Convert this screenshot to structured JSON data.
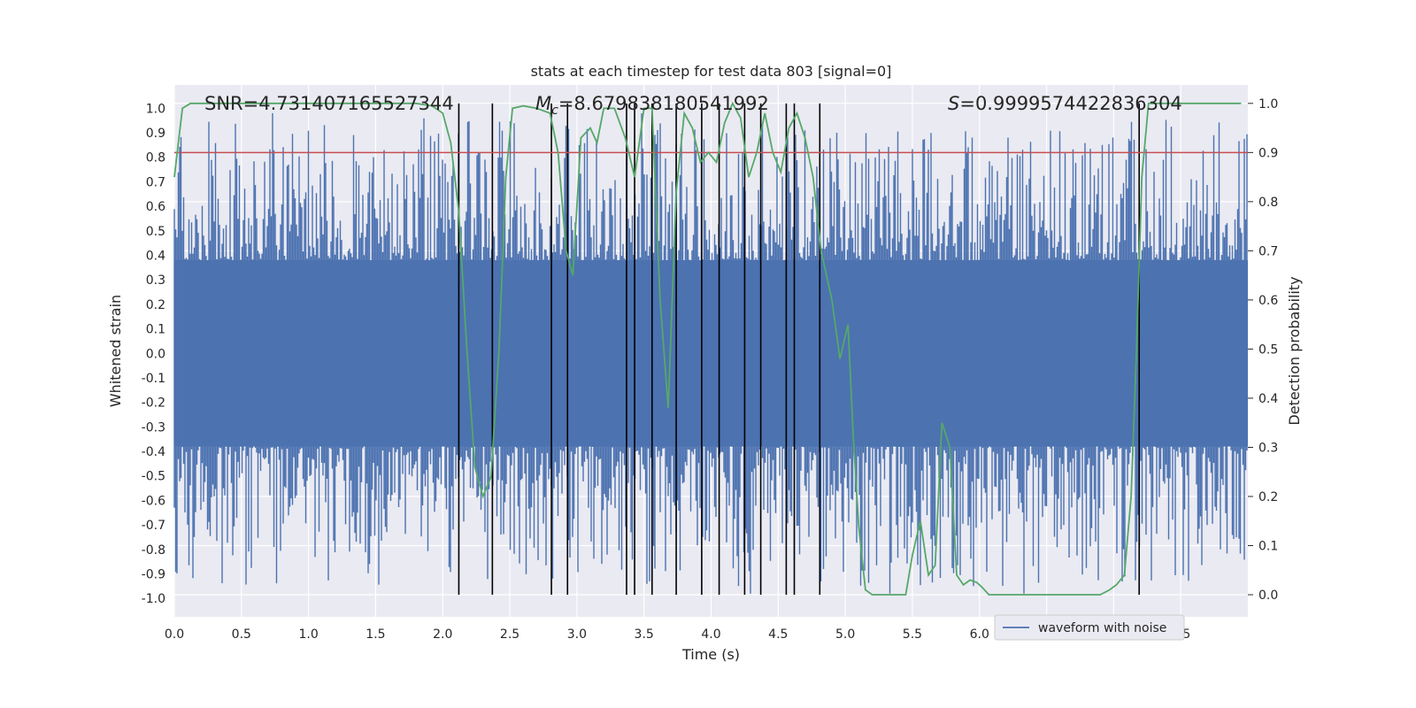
{
  "chart_data": {
    "type": "line",
    "title": "stats at each timestep for test data 803 [signal=0]",
    "xlabel": "Time (s)",
    "ylabel": "Whitened strain",
    "ylabel_right": "Detection probability",
    "xlim": [
      0.0,
      8.0
    ],
    "ylim": [
      -1.075,
      1.095
    ],
    "ylim_right": [
      -0.045,
      1.0375
    ],
    "x_ticks": [
      0.0,
      0.5,
      1.0,
      1.5,
      2.0,
      2.5,
      3.0,
      3.5,
      4.0,
      4.5,
      5.0,
      5.5,
      6.0,
      6.5,
      7.0,
      7.5
    ],
    "x_tick_labels": [
      "0.0",
      "0.5",
      "1.0",
      "1.5",
      "2.0",
      "2.5",
      "3.0",
      "3.5",
      "4.0",
      "4.5",
      "5.0",
      "5.5",
      "6.0",
      "6.5",
      "7.0",
      "7.5"
    ],
    "y_ticks": [
      1.0,
      0.9,
      0.8,
      0.7,
      0.6,
      0.5,
      0.4,
      0.3,
      0.2,
      0.1,
      0.0,
      -0.1,
      -0.2,
      -0.3,
      -0.4,
      -0.5,
      -0.6,
      -0.7,
      -0.8,
      -0.9,
      -1.0
    ],
    "y_tick_labels": [
      "1.0",
      "0.9",
      "0.8",
      "0.7",
      "0.6",
      "0.5",
      "0.4",
      "0.3",
      "0.2",
      "0.1",
      "0.0",
      "-0.1",
      "-0.2",
      "-0.3",
      "-0.4",
      "-0.5",
      "-0.6",
      "-0.7",
      "-0.8",
      "-0.9",
      "-1.0"
    ],
    "y_ticks_right": [
      1.0,
      0.9,
      0.8,
      0.7,
      0.6,
      0.5,
      0.4,
      0.3,
      0.2,
      0.1,
      0.0
    ],
    "y_tick_labels_right": [
      "1.0",
      "0.9",
      "0.8",
      "0.7",
      "0.6",
      "0.5",
      "0.4",
      "0.3",
      "0.2",
      "0.1",
      "0.0"
    ],
    "annotations": {
      "snr": "SNR=4.731407165527344",
      "mc_symbol": "M",
      "mc_sub": "c",
      "mc_value": "=8.679838180541992",
      "s_symbol": "S",
      "s_value": "=0.9999574422836304"
    },
    "threshold": {
      "value": 0.9,
      "axis": "right",
      "color": "#c44e52"
    },
    "waveform": {
      "name": "waveform with noise",
      "color": "#4c72b0",
      "band_typical": 0.38,
      "band_extreme": 0.98,
      "description_note": "dense noise trace, centered on 0"
    },
    "detection_probability": {
      "name": "detection probability",
      "color": "#55a868",
      "x": [
        0.0,
        0.06,
        0.12,
        0.2,
        0.4,
        0.6,
        0.8,
        1.0,
        1.2,
        1.4,
        1.6,
        1.8,
        1.92,
        2.0,
        2.06,
        2.12,
        2.18,
        2.24,
        2.3,
        2.36,
        2.42,
        2.47,
        2.52,
        2.6,
        2.7,
        2.8,
        2.86,
        2.92,
        2.97,
        3.03,
        3.1,
        3.15,
        3.2,
        3.28,
        3.36,
        3.43,
        3.5,
        3.56,
        3.62,
        3.68,
        3.74,
        3.8,
        3.86,
        3.92,
        3.98,
        4.04,
        4.1,
        4.16,
        4.22,
        4.28,
        4.34,
        4.4,
        4.46,
        4.52,
        4.58,
        4.64,
        4.7,
        4.76,
        4.82,
        4.9,
        4.96,
        5.02,
        5.06,
        5.1,
        5.15,
        5.2,
        5.26,
        5.35,
        5.45,
        5.5,
        5.56,
        5.62,
        5.67,
        5.72,
        5.78,
        5.83,
        5.88,
        5.93,
        5.98,
        6.02,
        6.07,
        6.12,
        6.2,
        6.3,
        6.4,
        6.5,
        6.6,
        6.7,
        6.8,
        6.9,
        6.97,
        7.02,
        7.08,
        7.13,
        7.17,
        7.21,
        7.26,
        7.3,
        7.4,
        7.6,
        7.8,
        7.95
      ],
      "y": [
        0.85,
        0.99,
        1.0,
        1.0,
        1.0,
        1.0,
        1.0,
        1.0,
        1.0,
        1.0,
        1.0,
        1.0,
        0.995,
        0.98,
        0.92,
        0.78,
        0.5,
        0.26,
        0.2,
        0.24,
        0.5,
        0.85,
        0.99,
        0.995,
        0.99,
        0.98,
        0.9,
        0.7,
        0.65,
        0.93,
        0.95,
        0.92,
        0.99,
        0.99,
        0.93,
        0.85,
        0.99,
        0.99,
        0.6,
        0.38,
        0.82,
        0.98,
        0.95,
        0.88,
        0.9,
        0.88,
        0.96,
        1.0,
        0.97,
        0.85,
        0.9,
        0.98,
        0.9,
        0.86,
        0.95,
        0.98,
        0.93,
        0.85,
        0.7,
        0.6,
        0.48,
        0.55,
        0.32,
        0.14,
        0.01,
        0.0,
        0.0,
        0.0,
        0.0,
        0.08,
        0.15,
        0.04,
        0.06,
        0.35,
        0.3,
        0.04,
        0.02,
        0.03,
        0.025,
        0.015,
        0.0,
        0.0,
        0.0,
        0.0,
        0.0,
        0.0,
        0.0,
        0.0,
        0.0,
        0.0,
        0.01,
        0.02,
        0.04,
        0.2,
        0.5,
        0.85,
        1.0,
        1.0,
        1.0,
        1.0,
        1.0,
        1.0
      ]
    },
    "vertical_lines_x": [
      2.12,
      2.37,
      2.81,
      2.93,
      3.37,
      3.43,
      3.56,
      3.74,
      3.93,
      4.06,
      4.25,
      4.37,
      4.56,
      4.62,
      4.81,
      7.19
    ],
    "vertical_lines_range_right": [
      0.0,
      1.0
    ],
    "legend": {
      "label": "waveform with noise",
      "loc": "lower-right"
    }
  }
}
